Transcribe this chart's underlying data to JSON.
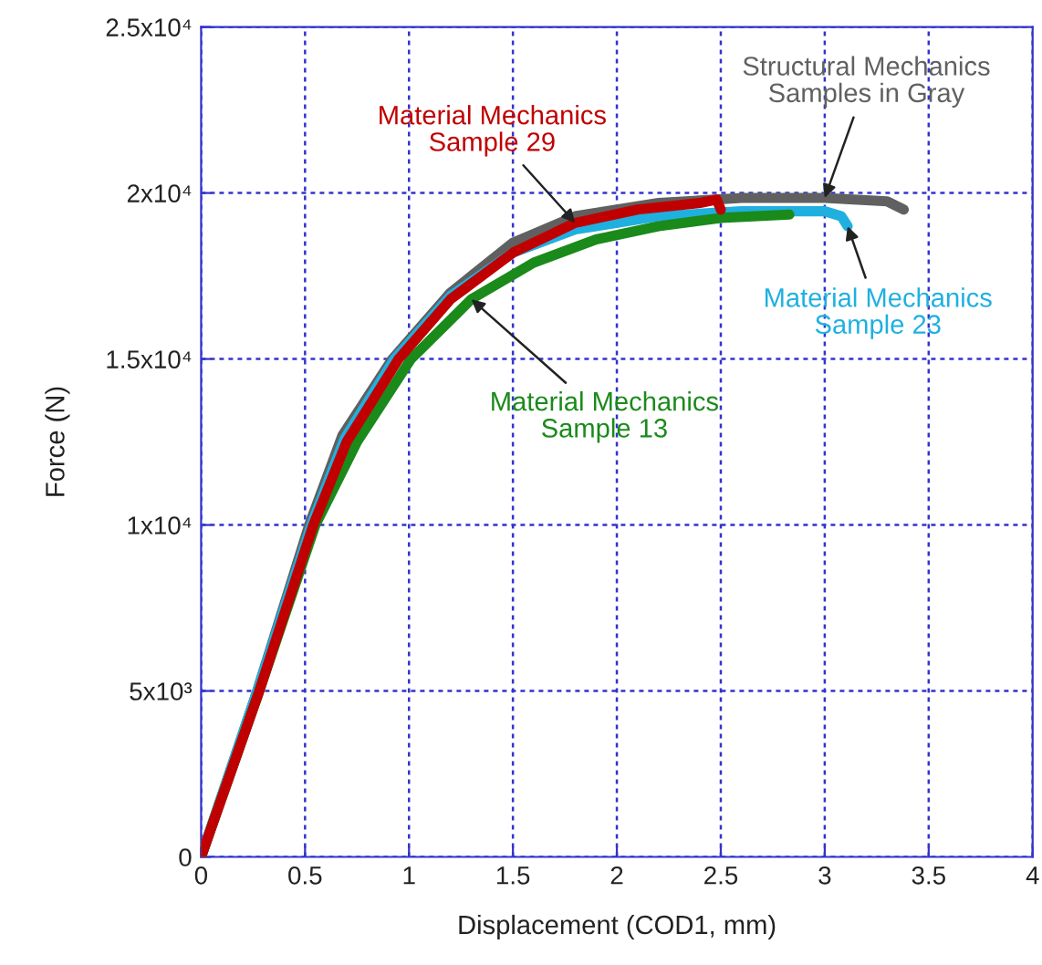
{
  "chart_data": {
    "type": "line",
    "xlabel": "Displacement (COD1, mm)",
    "ylabel": "Force (N)",
    "xlim": [
      0,
      4
    ],
    "xticks": [
      0,
      0.5,
      1,
      1.5,
      2,
      2.5,
      3,
      3.5,
      4
    ],
    "ylim": [
      0,
      25000
    ],
    "yticks": [
      {
        "value": 0,
        "label": "0"
      },
      {
        "value": 5000,
        "label": "5x10³"
      },
      {
        "value": 10000,
        "label": "1x10⁴"
      },
      {
        "value": 15000,
        "label": "1.5x10⁴"
      },
      {
        "value": 20000,
        "label": "2x10⁴"
      },
      {
        "value": 25000,
        "label": "2.5x10⁴"
      }
    ],
    "grid": true,
    "line_style": "solid",
    "marker": "none",
    "series": [
      {
        "color": "#606060",
        "x": [
          0,
          0.27,
          0.52,
          0.68,
          0.92,
          1.2,
          1.5,
          1.8,
          2.2,
          2.6,
          3.0,
          3.3,
          3.38
        ],
        "values": [
          0,
          5000,
          10000,
          12700,
          15000,
          17000,
          18500,
          19300,
          19700,
          19850,
          19850,
          19750,
          19500
        ]
      },
      {
        "color": "#1fb0e0",
        "x": [
          0,
          0.27,
          0.53,
          0.69,
          0.93,
          1.2,
          1.5,
          1.8,
          2.2,
          2.6,
          3.0,
          3.08,
          3.11
        ],
        "values": [
          0,
          5000,
          10000,
          12600,
          15000,
          16900,
          18200,
          18900,
          19300,
          19450,
          19450,
          19300,
          19000
        ]
      },
      {
        "color": "#1a8a1a",
        "x": [
          0,
          0.28,
          0.55,
          0.75,
          1.01,
          1.3,
          1.6,
          1.9,
          2.2,
          2.5,
          2.83
        ],
        "values": [
          0,
          5000,
          10000,
          12500,
          15000,
          16800,
          17900,
          18600,
          19000,
          19250,
          19350
        ]
      },
      {
        "color": "#c00000",
        "x": [
          0,
          0.28,
          0.54,
          0.7,
          0.95,
          1.2,
          1.5,
          1.8,
          2.1,
          2.4,
          2.48,
          2.5
        ],
        "values": [
          0,
          5000,
          10000,
          12500,
          15000,
          16800,
          18200,
          19100,
          19500,
          19700,
          19800,
          19500
        ]
      }
    ],
    "annotations": [
      {
        "text": "Material Mechanics\nSample 29",
        "x": 1.8,
        "y": 19100
      },
      {
        "text": "Structural Mechanics\nSamples in Gray",
        "x": 3.0,
        "y": 19850
      },
      {
        "text": "Material Mechanics\nSample 23",
        "x": 3.11,
        "y": 19000
      },
      {
        "text": "Material Mechanics\nSample 13",
        "x": 1.3,
        "y": 16800
      }
    ]
  }
}
